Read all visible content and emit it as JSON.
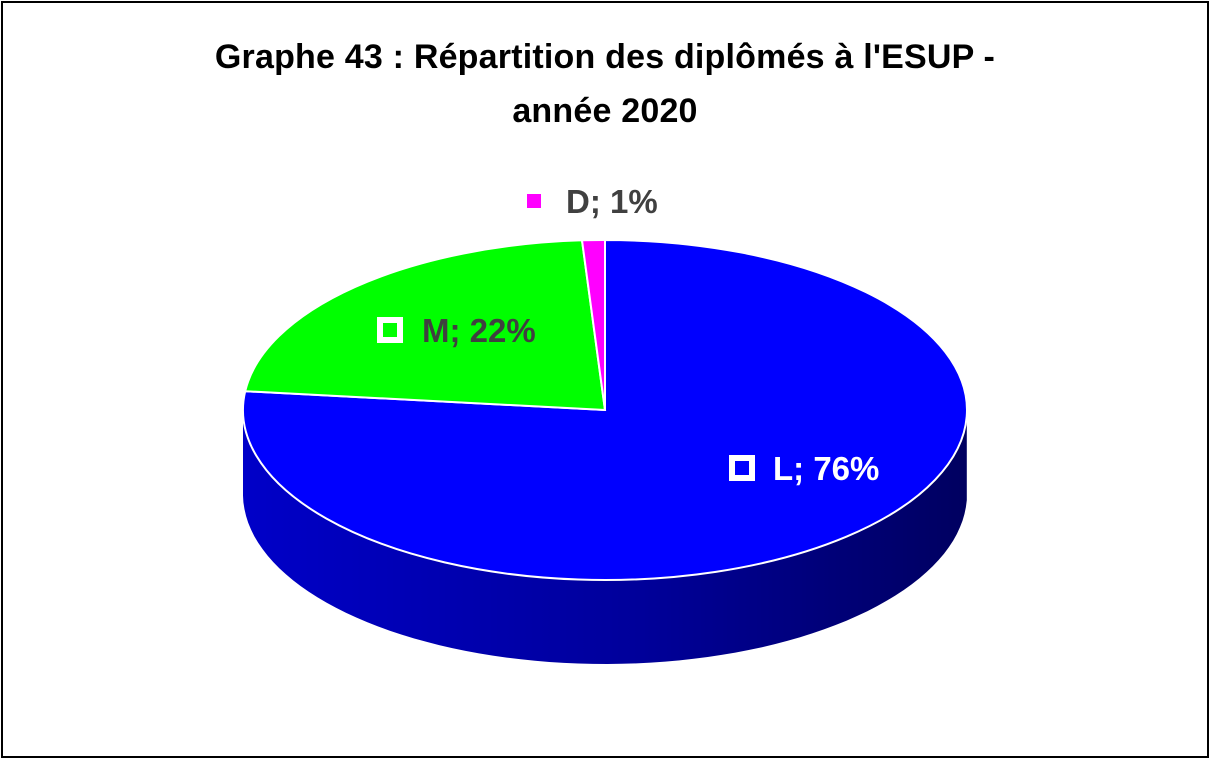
{
  "chart_data": {
    "type": "pie",
    "title_line1": "Graphe 43 : Répartition des diplômés à l'ESUP -",
    "title_line2": "année 2020",
    "slices": [
      {
        "name": "L",
        "value": 76,
        "label": "L; 76%",
        "color": "#0000ff",
        "side_color": "#000080",
        "label_color": "#ffffff"
      },
      {
        "name": "M",
        "value": 22,
        "label": "M; 22%",
        "color": "#00ff00",
        "side_color": "#00a000",
        "label_color": "#404040"
      },
      {
        "name": "D",
        "value": 1,
        "label": "D; 1%",
        "color": "#ff00ff",
        "side_color": "#a000a0",
        "label_color": "#404040"
      }
    ],
    "style": "3d-pie",
    "legend": "none"
  }
}
